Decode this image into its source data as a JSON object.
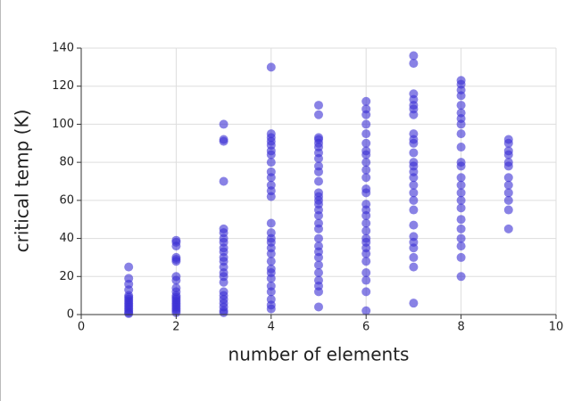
{
  "chart_data": {
    "type": "scatter",
    "xlabel": "number of elements",
    "ylabel": "critical temp (K)",
    "color": "#3b2fd3",
    "grid": true,
    "xlim": [
      0,
      10
    ],
    "ylim": [
      0,
      140
    ],
    "xticks": [
      0,
      2,
      4,
      6,
      8,
      10
    ],
    "yticks": [
      0,
      20,
      40,
      60,
      80,
      100,
      120,
      140
    ],
    "x": [
      1,
      1,
      1,
      1,
      1,
      1,
      1,
      1,
      1,
      1,
      1,
      1,
      1,
      1,
      1,
      2,
      2,
      2,
      2,
      2,
      2,
      2,
      2,
      2,
      2,
      2,
      2,
      2,
      2,
      2,
      2,
      2,
      2,
      2,
      2,
      3,
      3,
      3,
      3,
      3,
      3,
      3,
      3,
      3,
      3,
      3,
      3,
      3,
      3,
      3,
      3,
      3,
      3,
      3,
      3,
      3,
      3,
      3,
      4,
      4,
      4,
      4,
      4,
      4,
      4,
      4,
      4,
      4,
      4,
      4,
      4,
      4,
      4,
      4,
      4,
      4,
      4,
      4,
      4,
      4,
      4,
      4,
      4,
      4,
      4,
      4,
      5,
      5,
      5,
      5,
      5,
      5,
      5,
      5,
      5,
      5,
      5,
      5,
      5,
      5,
      5,
      5,
      5,
      5,
      5,
      5,
      5,
      5,
      5,
      5,
      5,
      5,
      5,
      5,
      5,
      6,
      6,
      6,
      6,
      6,
      6,
      6,
      6,
      6,
      6,
      6,
      6,
      6,
      6,
      6,
      6,
      6,
      6,
      6,
      6,
      6,
      6,
      6,
      6,
      6,
      6,
      6,
      7,
      7,
      7,
      7,
      7,
      7,
      7,
      7,
      7,
      7,
      7,
      7,
      7,
      7,
      7,
      7,
      7,
      7,
      7,
      7,
      7,
      7,
      7,
      7,
      7,
      7,
      8,
      8,
      8,
      8,
      8,
      8,
      8,
      8,
      8,
      8,
      8,
      8,
      8,
      8,
      8,
      8,
      8,
      8,
      8,
      8,
      8,
      8,
      8,
      9,
      9,
      9,
      9,
      9,
      9,
      9,
      9,
      9,
      9,
      9,
      9
    ],
    "values": [
      25,
      19,
      16,
      13,
      10,
      9,
      8,
      7,
      6,
      5,
      4,
      3,
      2,
      1,
      0.5,
      39,
      38,
      36,
      30,
      29,
      28,
      20,
      18,
      14,
      12,
      10,
      9,
      8,
      7,
      6,
      5,
      4,
      3,
      2,
      1,
      100,
      92,
      91,
      70,
      45,
      43,
      40,
      38,
      35,
      33,
      30,
      28,
      25,
      22,
      20,
      17,
      12,
      10,
      8,
      6,
      4,
      2,
      1,
      130,
      95,
      93,
      91,
      89,
      86,
      84,
      80,
      75,
      72,
      68,
      65,
      62,
      48,
      43,
      40,
      38,
      35,
      32,
      28,
      24,
      22,
      19,
      15,
      12,
      8,
      5,
      3,
      110,
      105,
      93,
      92,
      90,
      88,
      85,
      82,
      78,
      75,
      70,
      64,
      62,
      60,
      58,
      55,
      52,
      48,
      45,
      40,
      36,
      33,
      30,
      26,
      22,
      18,
      15,
      12,
      4,
      112,
      108,
      105,
      100,
      95,
      90,
      86,
      84,
      80,
      76,
      72,
      66,
      64,
      58,
      55,
      52,
      48,
      44,
      40,
      38,
      35,
      32,
      28,
      22,
      18,
      12,
      2,
      136,
      132,
      116,
      113,
      110,
      108,
      105,
      95,
      92,
      90,
      85,
      80,
      78,
      75,
      72,
      68,
      64,
      60,
      55,
      47,
      41,
      38,
      35,
      30,
      25,
      6,
      123,
      121,
      118,
      115,
      110,
      106,
      103,
      100,
      95,
      88,
      80,
      78,
      72,
      68,
      64,
      60,
      56,
      50,
      45,
      40,
      36,
      30,
      20,
      92,
      90,
      86,
      84,
      80,
      78,
      72,
      68,
      64,
      60,
      55,
      45
    ]
  }
}
